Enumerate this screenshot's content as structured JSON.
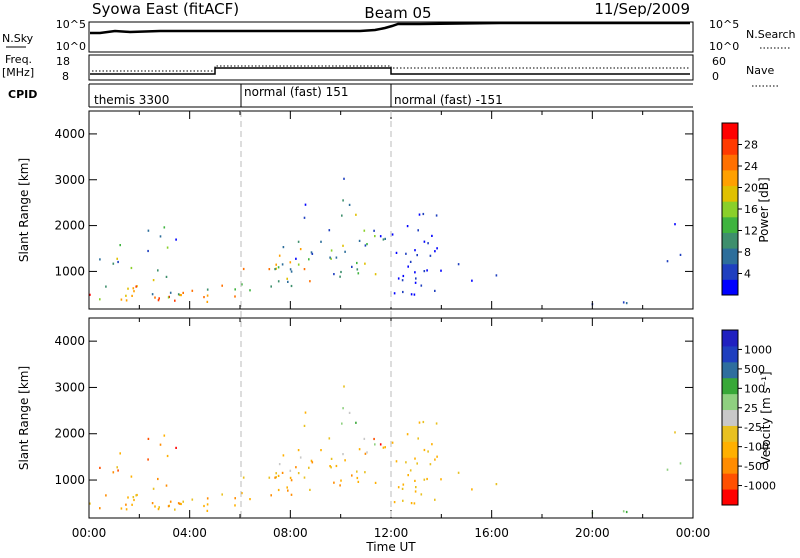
{
  "header": {
    "station": "Syowa East (fitACF)",
    "beam": "Beam 05",
    "date": "11/Sep/2009"
  },
  "status_panel": {
    "nsky_label": "N.Sky",
    "nsky_ticks": [
      "10^5",
      "10^0"
    ],
    "nsearch_label": "N.Search",
    "nsearch_ticks": [
      "10^5",
      "10^0"
    ],
    "freq_label": "Freq.",
    "freq_unit": "[MHz]",
    "freq_ticks": [
      "18",
      "8"
    ],
    "nave_label": "Nave",
    "nave_ticks": [
      "60",
      "0"
    ],
    "cpid_label": "CPID",
    "cpid_segments": [
      {
        "label": "themis 3300",
        "start_hour": 0,
        "end_hour": 6
      },
      {
        "label": "normal (fast) 151",
        "start_hour": 6,
        "end_hour": 12
      },
      {
        "label": "normal (fast) -151",
        "start_hour": 12,
        "end_hour": 24
      }
    ]
  },
  "colors": {
    "power_scale": [
      "#0000ff",
      "#1f3fbf",
      "#2d6e9b",
      "#3e8f6d",
      "#3fb43f",
      "#8ad02a",
      "#e0c000",
      "#ffa000",
      "#ff7000",
      "#ff3a00",
      "#ff0000"
    ],
    "velocity_scale": [
      "#ff0000",
      "#ff5000",
      "#ff8c00",
      "#ffb000",
      "#e8c020",
      "#c8c8c8",
      "#8fd080",
      "#38a838",
      "#2e6e9e",
      "#1f3fbf",
      "#2020c0"
    ]
  },
  "chart_data": [
    {
      "type": "heatmap",
      "panel": "power",
      "xlabel": "Time UT",
      "ylabel": "Slant Range [km]",
      "x_ticks": [
        "00:00",
        "04:00",
        "08:00",
        "12:00",
        "16:00",
        "20:00",
        "00:00"
      ],
      "xlim_hours": [
        0,
        24
      ],
      "y_ticks": [
        "1000",
        "2000",
        "3000",
        "4000"
      ],
      "ylim_km": [
        180,
        4500
      ],
      "colorbar_label": "Power [dB]",
      "colorbar_ticks": [
        "4",
        "8",
        "12",
        "16",
        "20",
        "24",
        "28"
      ],
      "colorbar_range": [
        0,
        30
      ]
    },
    {
      "type": "heatmap",
      "panel": "velocity",
      "xlabel": "Time UT",
      "ylabel": "Slant Range [km]",
      "x_ticks": [
        "00:00",
        "04:00",
        "08:00",
        "12:00",
        "16:00",
        "20:00",
        "00:00"
      ],
      "xlim_hours": [
        0,
        24
      ],
      "y_ticks": [
        "1000",
        "2000",
        "3000",
        "4000"
      ],
      "ylim_km": [
        180,
        4500
      ],
      "colorbar_label": "Velocity [m s⁻¹]",
      "colorbar_ticks": [
        "1000",
        "500",
        "100",
        "25",
        "-25",
        "-100",
        "-500",
        "-1000"
      ]
    }
  ]
}
